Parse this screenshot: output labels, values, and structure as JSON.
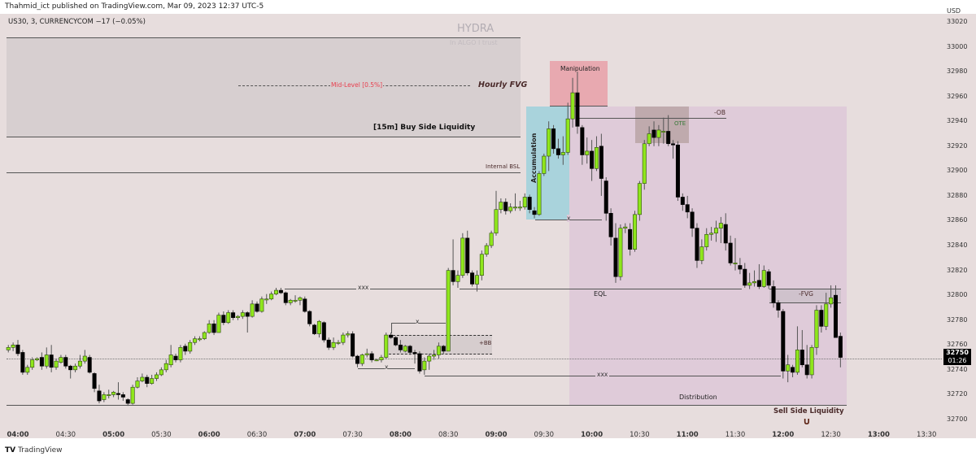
{
  "header": {
    "published": "Thahmid_ict published on TradingView.com, Mar 09, 2023 12:37 UTC-5"
  },
  "legend": {
    "symbol_line": "US30, 3, CURRENCYCOM  −17 (−0.05%)"
  },
  "footer": {
    "logo_text": "TradingView",
    "logo_mark": "TV"
  },
  "watermark": {
    "title": "HYDRA",
    "subtitle": "In ALGO I trust"
  },
  "annotations": {
    "mid_level": "Mid-Level [0.5%]",
    "hourly_fvg": "Hourly FVG",
    "buy_side": "[15m] Buy Side Liquidity",
    "internal_bsl": "Internal BSL",
    "manipulation": "Manipulation",
    "accumulation": "Accumulation",
    "distribution": "Distribution",
    "ob": "-OB",
    "ote": "OTE",
    "eql": "EQL",
    "xxx_high": "xxx",
    "xxx_low": "xxx",
    "x_accum": "x",
    "x_bb_top": "x",
    "x_low": "x",
    "bb": "+BB",
    "fvg": "-FVG",
    "sell_side": "Sell Side Liquidity",
    "magnet_icon": "magnet-icon",
    "colors": {
      "bg": "#e7dddd",
      "accumulation": "#a9d3dc",
      "manipulation": "#e8a9b0",
      "distribution": "#dfcbd9",
      "ote": "#bba8ab",
      "mid_level": "#e8404f",
      "up": "#8fe61c",
      "down": "#000000"
    }
  },
  "price_tag": {
    "price": "32750",
    "countdown": "01:26"
  },
  "chart_data": {
    "type": "candlestick",
    "currency": "USD",
    "interval_minutes": 3,
    "last_candle_time": "12:36",
    "ylim": [
      32700,
      33020
    ],
    "yticks": [
      "33020",
      "33000",
      "32980",
      "32960",
      "32940",
      "32920",
      "32900",
      "32880",
      "32860",
      "32840",
      "32820",
      "32800",
      "32780",
      "32760",
      "32740",
      "32720",
      "32700"
    ],
    "xticks": [
      "04:00",
      "04:30",
      "05:00",
      "05:30",
      "06:00",
      "06:30",
      "07:00",
      "07:30",
      "08:00",
      "08:30",
      "09:00",
      "09:30",
      "10:00",
      "10:30",
      "11:00",
      "11:30",
      "12:00",
      "12:30",
      "13:00",
      "13:30"
    ],
    "current_price": 32750,
    "candles_ohlc": [
      [
        32756,
        32760,
        32754,
        32758
      ],
      [
        32758,
        32762,
        32755,
        32760
      ],
      [
        32760,
        32764,
        32751,
        32753
      ],
      [
        32754,
        32756,
        32736,
        32738
      ],
      [
        32738,
        32744,
        32736,
        32742
      ],
      [
        32742,
        32750,
        32740,
        32748
      ],
      [
        32748,
        32750,
        32747,
        32749
      ],
      [
        32750,
        32754,
        32740,
        32743
      ],
      [
        32743,
        32758,
        32741,
        32752
      ],
      [
        32752,
        32760,
        32738,
        32742
      ],
      [
        32742,
        32749,
        32740,
        32747
      ],
      [
        32746,
        32752,
        32745,
        32750
      ],
      [
        32750,
        32752,
        32741,
        32743
      ],
      [
        32743,
        32744,
        32733,
        32740
      ],
      [
        32740,
        32745,
        32738,
        32743
      ],
      [
        32743,
        32752,
        32741,
        32747
      ],
      [
        32747,
        32756,
        32745,
        32751
      ],
      [
        32750,
        32752,
        32737,
        32738
      ],
      [
        32737,
        32738,
        32722,
        32725
      ],
      [
        32723,
        32728,
        32713,
        32715
      ],
      [
        32716,
        32722,
        32714,
        32720
      ],
      [
        32720,
        32724,
        32717,
        32720
      ],
      [
        32720,
        32723,
        32718,
        32722
      ],
      [
        32721,
        32730,
        32716,
        32720
      ],
      [
        32720,
        32722,
        32715,
        32718
      ],
      [
        32716,
        32717,
        32711,
        32713
      ],
      [
        32713,
        32728,
        32712,
        32726
      ],
      [
        32726,
        32734,
        32725,
        32731
      ],
      [
        32731,
        32737,
        32730,
        32734
      ],
      [
        32734,
        32736,
        32726,
        32729
      ],
      [
        32729,
        32736,
        32728,
        32733
      ],
      [
        32733,
        32738,
        32731,
        32736
      ],
      [
        32736,
        32742,
        32735,
        32740
      ],
      [
        32740,
        32748,
        32738,
        32745
      ],
      [
        32744,
        32760,
        32742,
        32752
      ],
      [
        32751,
        32753,
        32746,
        32748
      ],
      [
        32748,
        32760,
        32746,
        32758
      ],
      [
        32759,
        32761,
        32752,
        32755
      ],
      [
        32755,
        32764,
        32753,
        32762
      ],
      [
        32762,
        32767,
        32760,
        32765
      ],
      [
        32765,
        32767,
        32763,
        32765
      ],
      [
        32765,
        32771,
        32764,
        32770
      ],
      [
        32770,
        32780,
        32769,
        32777
      ],
      [
        32777,
        32780,
        32768,
        32770
      ],
      [
        32770,
        32786,
        32770,
        32784
      ],
      [
        32784,
        32787,
        32776,
        32778
      ],
      [
        32778,
        32788,
        32777,
        32786
      ],
      [
        32786,
        32788,
        32780,
        32782
      ],
      [
        32782,
        32784,
        32780,
        32783
      ],
      [
        32783,
        32788,
        32781,
        32786
      ],
      [
        32786,
        32787,
        32770,
        32783
      ],
      [
        32783,
        32796,
        32782,
        32793
      ],
      [
        32793,
        32795,
        32786,
        32787
      ],
      [
        32787,
        32799,
        32786,
        32797
      ],
      [
        32797,
        32801,
        32793,
        32797
      ],
      [
        32797,
        32803,
        32796,
        32801
      ],
      [
        32801,
        32806,
        32800,
        32804
      ],
      [
        32804,
        32806,
        32801,
        32802
      ],
      [
        32802,
        32803,
        32792,
        32794
      ],
      [
        32794,
        32797,
        32792,
        32796
      ],
      [
        32796,
        32800,
        32794,
        32796
      ],
      [
        32796,
        32799,
        32792,
        32798
      ],
      [
        32797,
        32799,
        32786,
        32787
      ],
      [
        32787,
        32788,
        32775,
        32777
      ],
      [
        32776,
        32777,
        32768,
        32769
      ],
      [
        32769,
        32780,
        32766,
        32779
      ],
      [
        32778,
        32779,
        32762,
        32764
      ],
      [
        32764,
        32766,
        32756,
        32758
      ],
      [
        32758,
        32766,
        32756,
        32762
      ],
      [
        32762,
        32764,
        32760,
        32762
      ],
      [
        32762,
        32770,
        32760,
        32768
      ],
      [
        32768,
        32771,
        32766,
        32769
      ],
      [
        32769,
        32771,
        32750,
        32751
      ],
      [
        32751,
        32752,
        32742,
        32745
      ],
      [
        32745,
        32753,
        32743,
        32752
      ],
      [
        32752,
        32757,
        32750,
        32753
      ],
      [
        32753,
        32755,
        32746,
        32748
      ],
      [
        32748,
        32749,
        32747,
        32748
      ],
      [
        32748,
        32752,
        32746,
        32750
      ],
      [
        32750,
        32770,
        32749,
        32768
      ],
      [
        32768,
        32770,
        32765,
        32766
      ],
      [
        32766,
        32767,
        32759,
        32760
      ],
      [
        32760,
        32764,
        32754,
        32756
      ],
      [
        32755,
        32760,
        32754,
        32759
      ],
      [
        32759,
        32760,
        32752,
        32754
      ],
      [
        32754,
        32756,
        32745,
        32753
      ],
      [
        32753,
        32755,
        32737,
        32739
      ],
      [
        32740,
        32750,
        32736,
        32747
      ],
      [
        32747,
        32753,
        32740,
        32751
      ],
      [
        32751,
        32756,
        32748,
        32752
      ],
      [
        32752,
        32762,
        32749,
        32759
      ],
      [
        32759,
        32760,
        32753,
        32755
      ],
      [
        32755,
        32822,
        32755,
        32820
      ],
      [
        32820,
        32845,
        32808,
        32811
      ],
      [
        32811,
        32820,
        32806,
        32816
      ],
      [
        32816,
        32850,
        32814,
        32846
      ],
      [
        32846,
        32852,
        32816,
        32818
      ],
      [
        32818,
        32820,
        32807,
        32809
      ],
      [
        32809,
        32820,
        32803,
        32816
      ],
      [
        32816,
        32836,
        32812,
        32833
      ],
      [
        32833,
        32842,
        32831,
        32840
      ],
      [
        32840,
        32852,
        32838,
        32850
      ],
      [
        32850,
        32884,
        32848,
        32869
      ],
      [
        32869,
        32878,
        32866,
        32875
      ],
      [
        32875,
        32878,
        32865,
        32868
      ],
      [
        32868,
        32874,
        32866,
        32871
      ],
      [
        32871,
        32882,
        32868,
        32871
      ],
      [
        32871,
        32876,
        32868,
        32871
      ],
      [
        32871,
        32882,
        32869,
        32879
      ],
      [
        32879,
        32881,
        32866,
        32869
      ],
      [
        32868,
        32871,
        32862,
        32865
      ],
      [
        32865,
        32900,
        32864,
        32898
      ],
      [
        32898,
        32914,
        32896,
        32912
      ],
      [
        32912,
        32940,
        32900,
        32934
      ],
      [
        32934,
        32937,
        32914,
        32918
      ],
      [
        32918,
        32926,
        32910,
        32913
      ],
      [
        32913,
        32928,
        32905,
        32915
      ],
      [
        32915,
        32955,
        32913,
        32942
      ],
      [
        32942,
        32975,
        32935,
        32963
      ],
      [
        32963,
        32980,
        32930,
        32936
      ],
      [
        32935,
        32937,
        32905,
        32913
      ],
      [
        32913,
        32927,
        32906,
        32916
      ],
      [
        32916,
        32925,
        32892,
        32902
      ],
      [
        32902,
        32928,
        32900,
        32919
      ],
      [
        32920,
        32930,
        32880,
        32894
      ],
      [
        32892,
        32895,
        32860,
        32866
      ],
      [
        32866,
        32870,
        32840,
        32847
      ],
      [
        32846,
        32858,
        32810,
        32815
      ],
      [
        32815,
        32857,
        32812,
        32854
      ],
      [
        32854,
        32858,
        32850,
        32855
      ],
      [
        32853,
        32858,
        32832,
        32837
      ],
      [
        32837,
        32868,
        32835,
        32865
      ],
      [
        32865,
        32892,
        32860,
        32890
      ],
      [
        32890,
        32925,
        32885,
        32922
      ],
      [
        32922,
        32936,
        32920,
        32930
      ],
      [
        32933,
        32940,
        32920,
        32927
      ],
      [
        32927,
        32937,
        32920,
        32933
      ],
      [
        32932,
        32943,
        32922,
        32932
      ],
      [
        32932,
        32945,
        32920,
        32922
      ],
      [
        32922,
        32925,
        32910,
        32921
      ],
      [
        32921,
        32924,
        32876,
        32879
      ],
      [
        32879,
        32882,
        32868,
        32873
      ],
      [
        32873,
        32880,
        32862,
        32867
      ],
      [
        32867,
        32870,
        32847,
        32854
      ],
      [
        32854,
        32858,
        32822,
        32828
      ],
      [
        32828,
        32845,
        32825,
        32839
      ],
      [
        32839,
        32854,
        32836,
        32849
      ],
      [
        32849,
        32855,
        32844,
        32850
      ],
      [
        32850,
        32860,
        32843,
        32854
      ],
      [
        32854,
        32863,
        32842,
        32858
      ],
      [
        32857,
        32866,
        32836,
        32842
      ],
      [
        32842,
        32848,
        32824,
        32826
      ],
      [
        32826,
        32846,
        32820,
        32826
      ],
      [
        32824,
        32830,
        32817,
        32821
      ],
      [
        32821,
        32826,
        32806,
        32808
      ],
      [
        32808,
        32818,
        32805,
        32810
      ],
      [
        32810,
        32820,
        32807,
        32811
      ],
      [
        32812,
        32825,
        32805,
        32807
      ],
      [
        32807,
        32824,
        32806,
        32820
      ],
      [
        32819,
        32821,
        32805,
        32808
      ],
      [
        32807,
        32812,
        32790,
        32794
      ],
      [
        32794,
        32796,
        32782,
        32788
      ],
      [
        32787,
        32789,
        32733,
        32739
      ],
      [
        32739,
        32752,
        32730,
        32744
      ],
      [
        32742,
        32744,
        32734,
        32738
      ],
      [
        32738,
        32775,
        32736,
        32756
      ],
      [
        32756,
        32772,
        32742,
        32744
      ],
      [
        32744,
        32760,
        32733,
        32736
      ],
      [
        32736,
        32760,
        32733,
        32758
      ],
      [
        32758,
        32792,
        32752,
        32788
      ],
      [
        32788,
        32792,
        32770,
        32775
      ],
      [
        32775,
        32802,
        32772,
        32793
      ],
      [
        32793,
        32808,
        32790,
        32798
      ],
      [
        32800,
        32808,
        32766,
        32766
      ],
      [
        32767,
        32770,
        32742,
        32750
      ]
    ]
  }
}
